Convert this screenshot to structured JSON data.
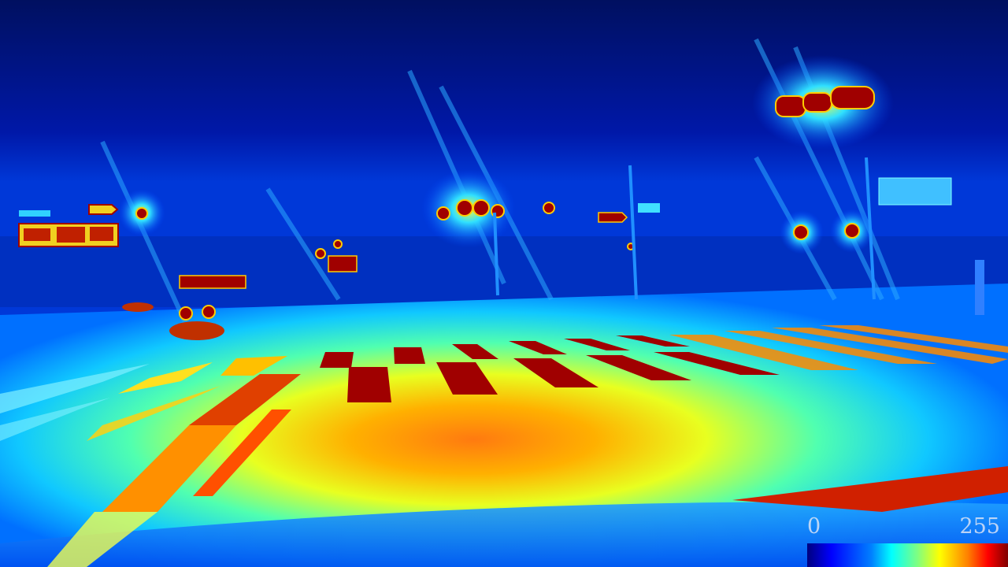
{
  "image": {
    "description_kind": "false-color intensity map of a night-time road intersection",
    "palette": {
      "low": "#00007f",
      "blue": "#0000ff",
      "cyan": "#00ffff",
      "green": "#80ff80",
      "yellow": "#ffff00",
      "orange": "#ff8000",
      "red": "#ff0000",
      "high": "#800000"
    }
  },
  "colorbar": {
    "min_label": "0",
    "max_label": "255",
    "colormap": "jet"
  }
}
